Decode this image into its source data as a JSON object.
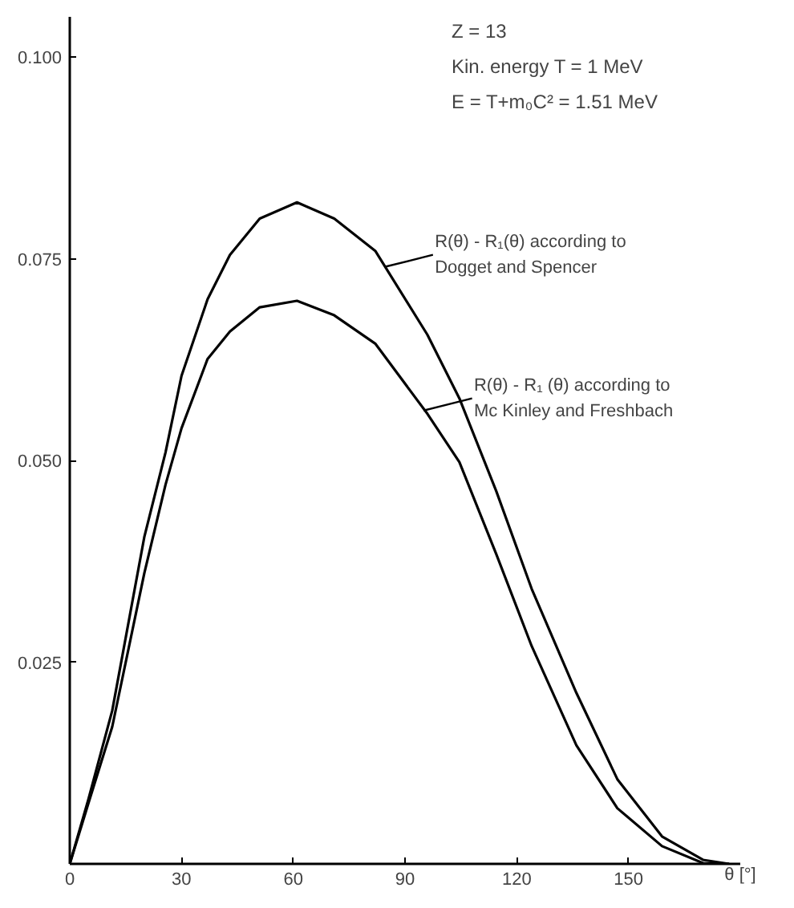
{
  "chart_data": {
    "type": "line",
    "x": [
      0,
      5,
      11.4,
      20,
      25.7,
      30,
      37,
      43,
      51,
      61,
      71,
      82,
      96,
      104.6,
      114.5,
      124,
      136,
      147,
      159,
      170,
      177
    ],
    "series": [
      {
        "color": "#000000",
        "values": [
          0,
          0.008,
          0.019,
          0.0405,
          0.051,
          0.0605,
          0.07,
          0.0755,
          0.08,
          0.082,
          0.08,
          0.076,
          0.0656,
          0.0577,
          0.0462,
          0.0341,
          0.0212,
          0.0105,
          0.0034,
          0.0005,
          0
        ]
      },
      {
        "color": "#000000",
        "values": [
          0,
          0.0075,
          0.017,
          0.036,
          0.047,
          0.054,
          0.0626,
          0.066,
          0.069,
          0.0698,
          0.068,
          0.0645,
          0.0558,
          0.0498,
          0.0384,
          0.027,
          0.0147,
          0.0069,
          0.0022,
          0.0001,
          0
        ]
      }
    ],
    "xlim": [
      0,
      180
    ],
    "ylim": [
      0,
      0.105
    ],
    "xticks": [
      0,
      30,
      60,
      90,
      120,
      150
    ],
    "yticks": [
      {
        "value": 0.025,
        "label": "0.025"
      },
      {
        "value": 0.05,
        "label": "0.050"
      },
      {
        "value": 0.075,
        "label": "0.075"
      },
      {
        "value": 0.1,
        "label": "0.100"
      }
    ],
    "xlabel": "θ [°]",
    "grid": false,
    "marker": "none",
    "line_style": "solid",
    "annotations": [
      "Z = 13",
      "Kin. energy T = 1 MeV",
      "E = T+m₀C² = 1.51 MeV",
      {
        "text": "R(θ) - R₁(θ) according to Dogget and Spencer",
        "x": 84.5,
        "y": 0.074
      },
      {
        "text": "R(θ) - R₁ (θ) according to Mc Kinley and Freshbach",
        "x": 95,
        "y": 0.0562
      }
    ]
  }
}
